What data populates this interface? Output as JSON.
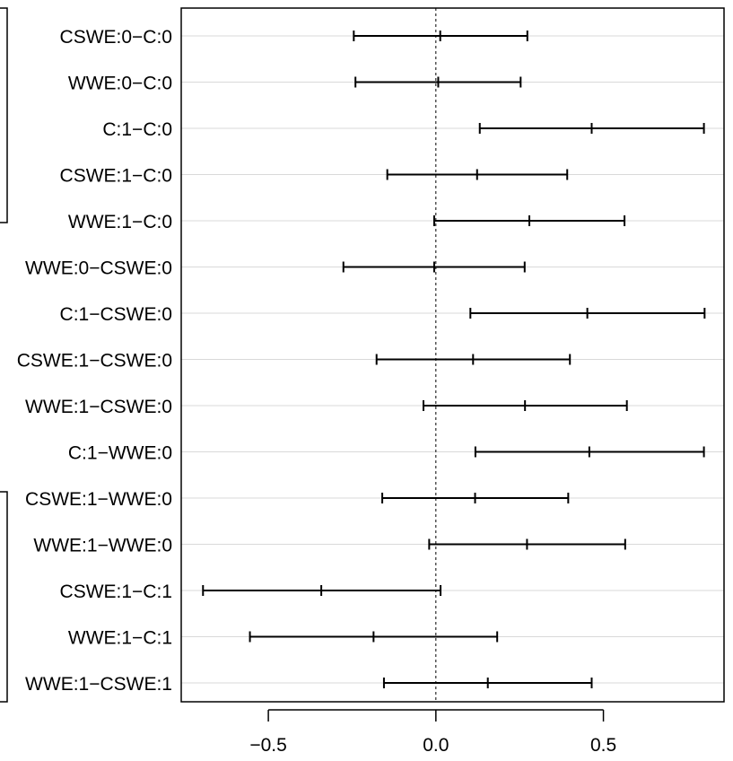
{
  "chart_data": {
    "type": "interval",
    "title": "",
    "xlabel": "",
    "ylabel": "",
    "xlim": [
      -0.76,
      0.86
    ],
    "x_ticks": [
      {
        "value": -0.5,
        "label": "−0.5"
      },
      {
        "value": 0.0,
        "label": "0.0"
      },
      {
        "value": 0.5,
        "label": "0.5"
      }
    ],
    "reference_line": 0,
    "grid": "horizontal",
    "colors": {
      "grid": "#d9d9d9",
      "line": "#000000"
    },
    "intervals": [
      {
        "label": "CSWE:0−C:0",
        "lower": -0.245,
        "estimate": 0.013,
        "upper": 0.273
      },
      {
        "label": "WWE:0−C:0",
        "lower": -0.24,
        "estimate": 0.007,
        "upper": 0.253
      },
      {
        "label": "C:1−C:0",
        "lower": 0.131,
        "estimate": 0.465,
        "upper": 0.8
      },
      {
        "label": "CSWE:1−C:0",
        "lower": -0.145,
        "estimate": 0.123,
        "upper": 0.392
      },
      {
        "label": "WWE:1−C:0",
        "lower": -0.005,
        "estimate": 0.279,
        "upper": 0.563
      },
      {
        "label": "WWE:0−CSWE:0",
        "lower": -0.276,
        "estimate": -0.005,
        "upper": 0.265
      },
      {
        "label": "C:1−CSWE:0",
        "lower": 0.103,
        "estimate": 0.452,
        "upper": 0.802
      },
      {
        "label": "CSWE:1−CSWE:0",
        "lower": -0.177,
        "estimate": 0.111,
        "upper": 0.4
      },
      {
        "label": "WWE:1−CSWE:0",
        "lower": -0.037,
        "estimate": 0.266,
        "upper": 0.57
      },
      {
        "label": "C:1−WWE:0",
        "lower": 0.118,
        "estimate": 0.458,
        "upper": 0.8
      },
      {
        "label": "CSWE:1−WWE:0",
        "lower": -0.16,
        "estimate": 0.117,
        "upper": 0.395
      },
      {
        "label": "WWE:1−WWE:0",
        "lower": -0.02,
        "estimate": 0.272,
        "upper": 0.565
      },
      {
        "label": "CSWE:1−C:1",
        "lower": -0.695,
        "estimate": -0.342,
        "upper": 0.014
      },
      {
        "label": "WWE:1−C:1",
        "lower": -0.555,
        "estimate": -0.186,
        "upper": 0.183
      },
      {
        "label": "WWE:1−CSWE:1",
        "lower": -0.155,
        "estimate": 0.155,
        "upper": 0.465
      }
    ]
  }
}
